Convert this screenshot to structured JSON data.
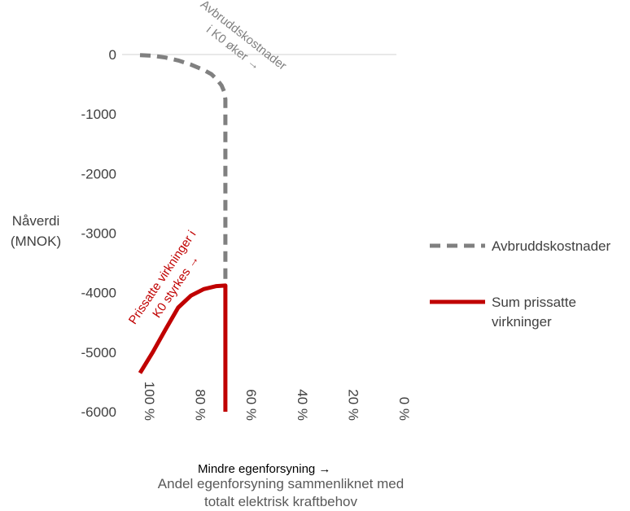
{
  "colors": {
    "series_grey": "#808080",
    "series_red": "#c00000",
    "text": "#404040",
    "axis": "#d9d9d9"
  },
  "chart_data": {
    "type": "line",
    "title": "",
    "ylabel_lines": [
      "Nåverdi",
      "(MNOK)"
    ],
    "xlabel_lines": [
      "Andel egenforsyning sammenliknet med",
      "totalt elektrisk kraftbehov"
    ],
    "x_arrow_label": "Mindre egenforsyning →",
    "x_reversed": true,
    "xlim": [
      100,
      0
    ],
    "ylim": [
      -6000,
      0
    ],
    "y_ticks": [
      0,
      -1000,
      -2000,
      -3000,
      -4000,
      -5000,
      -6000
    ],
    "y_tick_labels": [
      "0",
      "-1000",
      "-2000",
      "-3000",
      "-4000",
      "-5000",
      "-6000"
    ],
    "x_ticks": [
      100,
      80,
      60,
      40,
      20,
      0
    ],
    "x_tick_labels": [
      "100 %",
      "80 %",
      "60 %",
      "40 %",
      "20 %",
      "0 %"
    ],
    "grid": false,
    "legend_position": "right",
    "series": [
      {
        "name": "Avbruddskostnader",
        "style": "dashed",
        "color": "#808080",
        "x": [
          100,
          95,
          90,
          85,
          80,
          75,
          72,
          70,
          68,
          67,
          66.5,
          66.5,
          66.5,
          66.5
        ],
        "y": [
          -10,
          -20,
          -50,
          -100,
          -170,
          -260,
          -330,
          -410,
          -520,
          -620,
          -750,
          -2000,
          -3500,
          -3900
        ]
      },
      {
        "name": "Sum prissatte virkninger",
        "style": "solid",
        "color": "#c00000",
        "x": [
          100,
          95,
          90,
          85,
          80,
          75,
          70,
          66.5,
          66.5,
          66.5
        ],
        "y": [
          -5350,
          -5000,
          -4620,
          -4250,
          -4050,
          -3940,
          -3890,
          -3880,
          -5000,
          -6000
        ]
      }
    ],
    "annotations": [
      {
        "lines": [
          "Avbruddskostnader",
          "i K0 øker →"
        ],
        "color": "#808080"
      },
      {
        "lines": [
          "Prissatte virkninger i",
          "K0 styrkes →"
        ],
        "color": "#c00000"
      }
    ]
  }
}
